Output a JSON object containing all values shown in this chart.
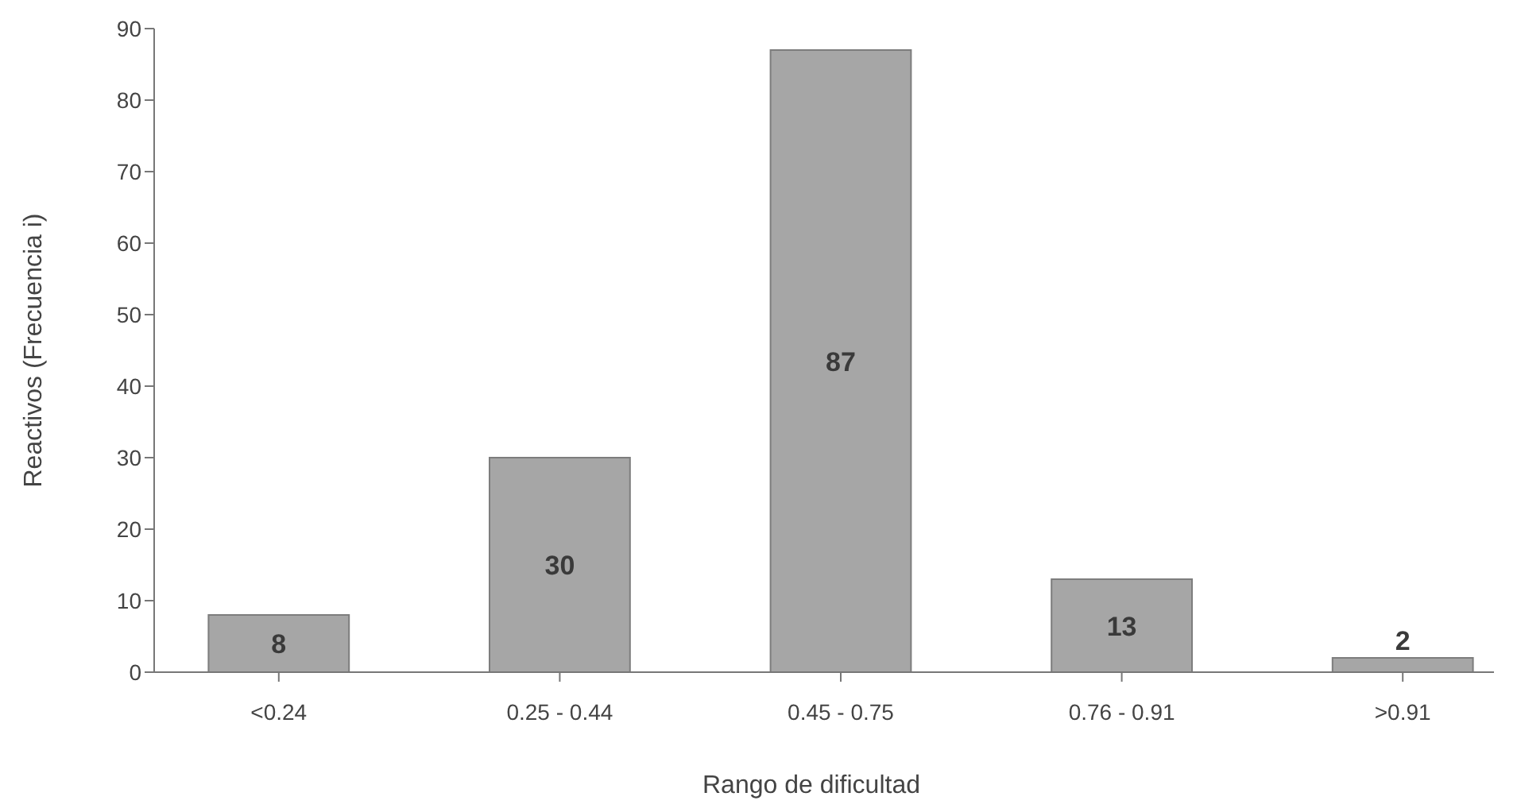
{
  "chart_data": {
    "type": "bar",
    "xlabel": "Rango de dificultad",
    "ylabel": "Reactivos (Frecuencia i)",
    "categories": [
      "<0.24",
      "0.25 - 0.44",
      "0.45 - 0.75",
      "0.76 - 0.91",
      ">0.91"
    ],
    "values": [
      8,
      30,
      87,
      13,
      2
    ],
    "color": "#a6a6a6",
    "ylim": [
      0,
      90
    ],
    "yticks": [
      0,
      10,
      20,
      30,
      40,
      50,
      60,
      70,
      80,
      90
    ],
    "grid": false,
    "data_labels": true
  }
}
